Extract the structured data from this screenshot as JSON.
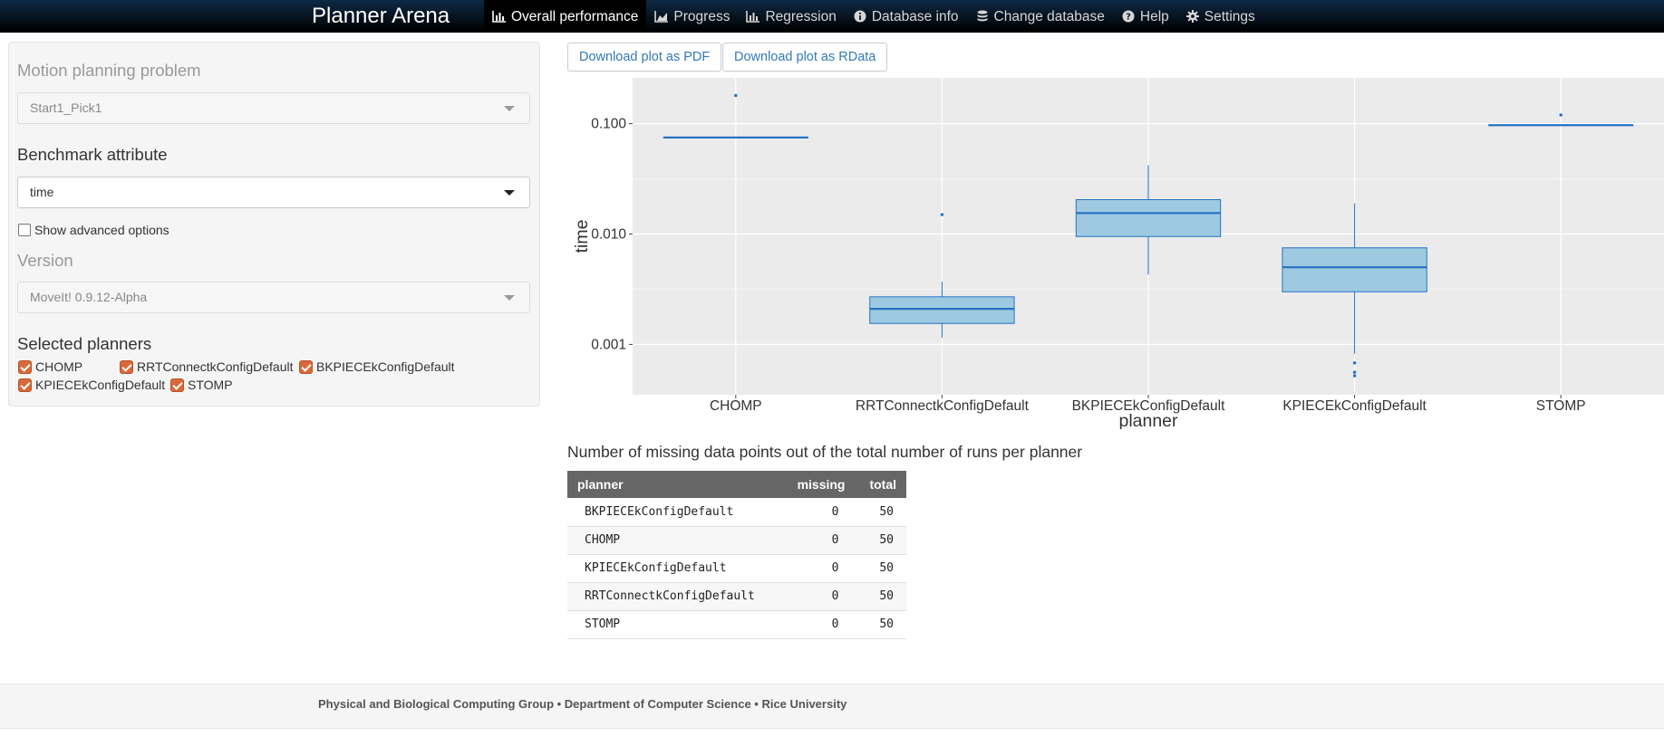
{
  "navbar": {
    "brand": "Planner Arena",
    "items": [
      {
        "label": "Overall performance",
        "icon": "bar-chart-icon",
        "active": true
      },
      {
        "label": "Progress",
        "icon": "area-chart-icon"
      },
      {
        "label": "Regression",
        "icon": "bar-chart-icon"
      },
      {
        "label": "Database info",
        "icon": "info-circle-icon"
      },
      {
        "label": "Change database",
        "icon": "database-icon"
      },
      {
        "label": "Help",
        "icon": "question-circle-icon"
      },
      {
        "label": "Settings",
        "icon": "gear-icon"
      }
    ]
  },
  "sidebar": {
    "problem_label": "Motion planning problem",
    "problem_value": "Start1_Pick1",
    "attribute_label": "Benchmark attribute",
    "attribute_value": "time",
    "advanced_label": "Show advanced options",
    "advanced_checked": false,
    "version_label": "Version",
    "version_value": "MoveIt! 0.9.12-Alpha",
    "planners_label": "Selected planners",
    "planners": [
      {
        "label": "CHOMP",
        "checked": true
      },
      {
        "label": "RRTConnectkConfigDefault",
        "checked": true
      },
      {
        "label": "BKPIECEkConfigDefault",
        "checked": true
      },
      {
        "label": "KPIECEkConfigDefault",
        "checked": true
      },
      {
        "label": "STOMP",
        "checked": true
      }
    ]
  },
  "buttons": {
    "pdf": "Download plot as PDF",
    "rdata": "Download plot as RData"
  },
  "chart_data": {
    "type": "box",
    "xlabel": "planner",
    "ylabel": "time",
    "y_scale": "log10",
    "ylim": [
      0.00035,
      0.26
    ],
    "y_ticks": [
      {
        "value": 0.1,
        "label": "0.100"
      },
      {
        "value": 0.01,
        "label": "0.010"
      },
      {
        "value": 0.001,
        "label": "0.001"
      }
    ],
    "grid": true,
    "categories": [
      "CHOMP",
      "RRTConnectkConfigDefault",
      "BKPIECEkConfigDefault",
      "KPIECEkConfigDefault",
      "STOMP"
    ],
    "boxes": [
      {
        "planner": "CHOMP",
        "q1": 0.075,
        "median": 0.075,
        "q3": 0.075,
        "whisker_low": 0.075,
        "whisker_high": 0.075,
        "outliers": [
          0.18
        ]
      },
      {
        "planner": "RRTConnectkConfigDefault",
        "q1": 0.00155,
        "median": 0.0021,
        "q3": 0.0027,
        "whisker_low": 0.00115,
        "whisker_high": 0.0037,
        "outliers": [
          0.015
        ]
      },
      {
        "planner": "BKPIECEkConfigDefault",
        "q1": 0.0095,
        "median": 0.0155,
        "q3": 0.0205,
        "whisker_low": 0.0043,
        "whisker_high": 0.042,
        "outliers": []
      },
      {
        "planner": "KPIECEkConfigDefault",
        "q1": 0.003,
        "median": 0.005,
        "q3": 0.0075,
        "whisker_low": 0.00082,
        "whisker_high": 0.019,
        "outliers": [
          0.00068,
          0.00056,
          0.00052
        ]
      },
      {
        "planner": "STOMP",
        "q1": 0.097,
        "median": 0.097,
        "q3": 0.097,
        "whisker_low": 0.097,
        "whisker_high": 0.097,
        "outliers": [
          0.12
        ]
      }
    ],
    "colors": {
      "panel": "#ebebeb",
      "grid": "#ffffff",
      "box_fill": "#9ecae1",
      "box_line": "#2471c4"
    }
  },
  "missing_table": {
    "title": "Number of missing data points out of the total number of runs per planner",
    "columns": [
      "planner",
      "missing",
      "total"
    ],
    "rows": [
      [
        "BKPIECEkConfigDefault",
        "0",
        "50"
      ],
      [
        "CHOMP",
        "0",
        "50"
      ],
      [
        "KPIECEkConfigDefault",
        "0",
        "50"
      ],
      [
        "RRTConnectkConfigDefault",
        "0",
        "50"
      ],
      [
        "STOMP",
        "0",
        "50"
      ]
    ]
  },
  "footer": {
    "text": "Physical and Biological Computing Group • Department of Computer Science • Rice University"
  }
}
